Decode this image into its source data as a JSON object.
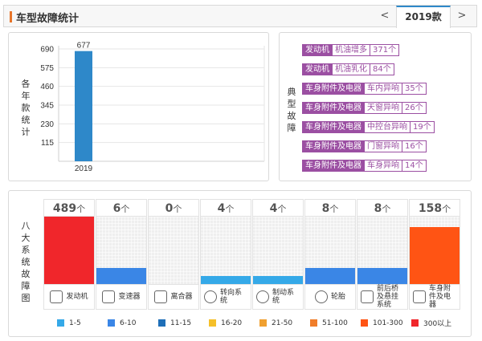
{
  "header": {
    "title": "车型故障统计",
    "prev_label": "<",
    "year_tab": "2019款",
    "next_label": ">"
  },
  "year_chart": {
    "side_label": "各年款统计",
    "chart_data": {
      "type": "bar",
      "categories": [
        "2019"
      ],
      "values": [
        677
      ],
      "y_ticks": [
        115,
        230,
        345,
        460,
        575,
        690
      ],
      "ylim": [
        0,
        690
      ],
      "bar_color": "#2e88c9",
      "grid": true
    }
  },
  "typical_faults": {
    "side_label": "典型故障",
    "items": [
      {
        "category": "发动机",
        "name": "机油增多",
        "count": "371个"
      },
      {
        "category": "发动机",
        "name": "机油乳化",
        "count": "84个"
      },
      {
        "category": "车身附件及电器",
        "name": "车内异响",
        "count": "35个"
      },
      {
        "category": "车身附件及电器",
        "name": "天窗异响",
        "count": "26个"
      },
      {
        "category": "车身附件及电器",
        "name": "中控台异响",
        "count": "19个"
      },
      {
        "category": "车身附件及电器",
        "name": "门窗异响",
        "count": "16个"
      },
      {
        "category": "车身附件及电器",
        "name": "车身异响",
        "count": "14个"
      }
    ]
  },
  "systems": {
    "side_label": "八大系统故障图",
    "unit": "个",
    "items": [
      {
        "label": "发动机",
        "icon": "engine-icon",
        "count": "489",
        "level": 1.0,
        "color": "#f0262b"
      },
      {
        "label": "变速器",
        "icon": "gear-shift-icon",
        "count": "6",
        "level": 0.24,
        "color": "#3a86e6"
      },
      {
        "label": "离合器",
        "icon": "clutch-pedal-icon",
        "count": "0",
        "level": 0.0,
        "color": "#3a86e6"
      },
      {
        "label": "转向系统",
        "icon": "steering-wheel-icon",
        "count": "4",
        "level": 0.12,
        "color": "#35a9e8"
      },
      {
        "label": "制动系统",
        "icon": "brake-disc-icon",
        "count": "4",
        "level": 0.12,
        "color": "#35a9e8"
      },
      {
        "label": "轮胎",
        "icon": "tire-icon",
        "count": "8",
        "level": 0.24,
        "color": "#3a86e6"
      },
      {
        "label": "前后桥及悬挂系统",
        "icon": "suspension-icon",
        "count": "8",
        "level": 0.24,
        "color": "#3a86e6"
      },
      {
        "label": "车身附件及电器",
        "icon": "car-body-icon",
        "count": "158",
        "level": 0.84,
        "color": "#ff5414"
      }
    ],
    "legend": [
      {
        "label": "1-5",
        "color": "#35a9e8"
      },
      {
        "label": "6-10",
        "color": "#3a86e6"
      },
      {
        "label": "11-15",
        "color": "#1f6fb8"
      },
      {
        "label": "16-20",
        "color": "#f5c02a"
      },
      {
        "label": "21-50",
        "color": "#f0a030"
      },
      {
        "label": "51-100",
        "color": "#f07d2a"
      },
      {
        "label": "101-300",
        "color": "#ff5414"
      },
      {
        "label": "300以上",
        "color": "#f0262b"
      }
    ]
  }
}
